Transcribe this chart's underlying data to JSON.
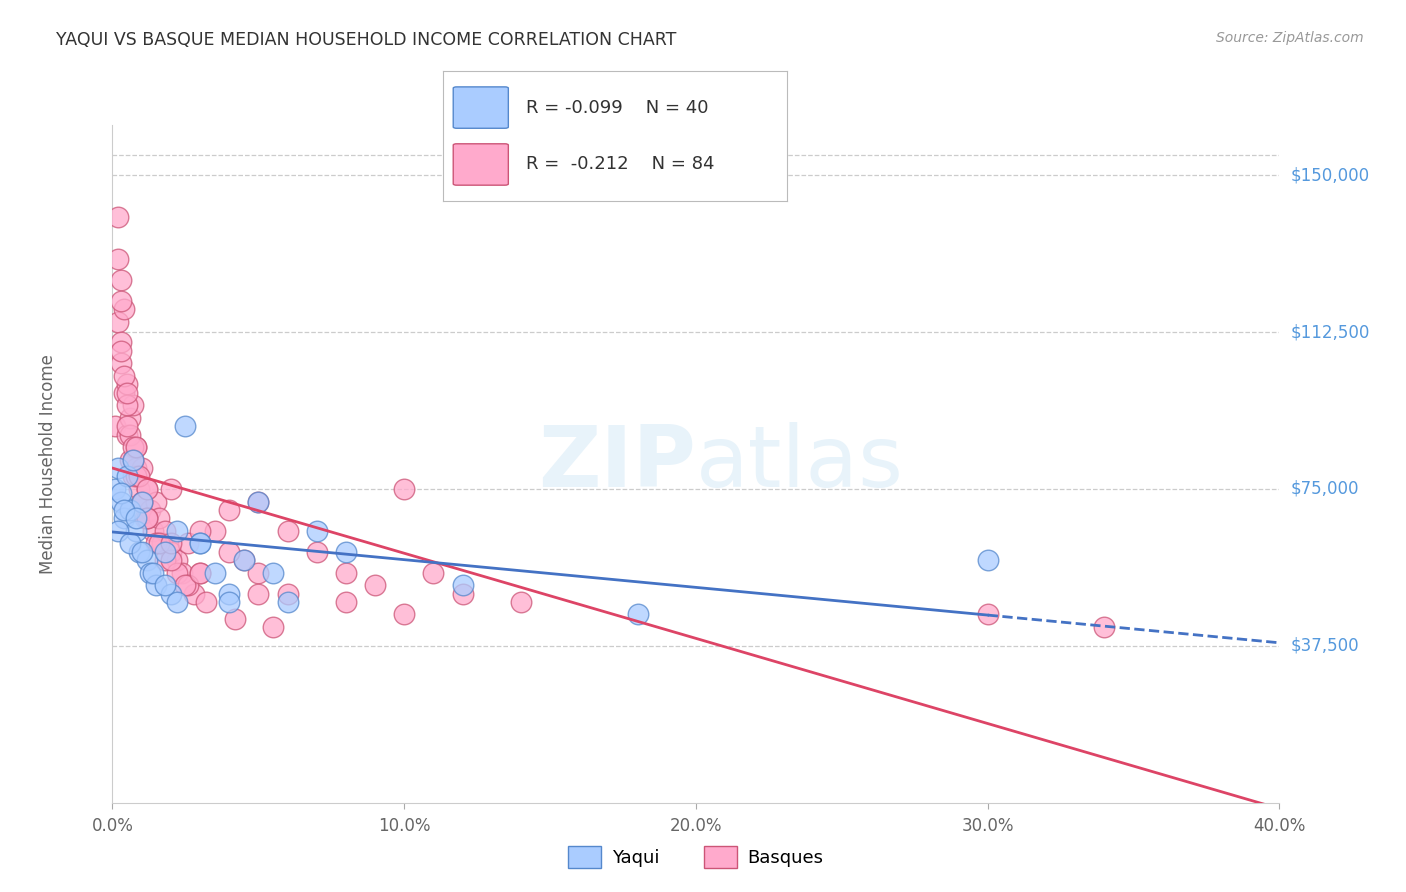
{
  "title": "YAQUI VS BASQUE MEDIAN HOUSEHOLD INCOME CORRELATION CHART",
  "source": "Source: ZipAtlas.com",
  "ylabel_label": "Median Household Income",
  "xmin": 0.0,
  "xmax": 0.4,
  "ymin": 0,
  "ymax": 162000,
  "ytick_vals": [
    37500,
    75000,
    112500,
    150000
  ],
  "ytick_labels": [
    "$37,500",
    "$75,000",
    "$112,500",
    "$150,000"
  ],
  "xticks": [
    0.0,
    0.1,
    0.2,
    0.3,
    0.4
  ],
  "xtick_labels": [
    "0.0%",
    "10.0%",
    "20.0%",
    "30.0%",
    "40.0%"
  ],
  "yaqui_color": "#aaccff",
  "yaqui_edge": "#5588cc",
  "basque_color": "#ffaacc",
  "basque_edge": "#cc5577",
  "trend_yaqui_color": "#4472c4",
  "trend_basque_color": "#dd4466",
  "legend_r_yaqui": "R = -0.099",
  "legend_n_yaqui": "N = 40",
  "legend_r_basque": "R =  -0.212",
  "legend_n_basque": "N = 84",
  "watermark": "ZIPatlas",
  "background_color": "#ffffff",
  "grid_color": "#cccccc",
  "title_color": "#333333",
  "axis_label_color": "#666666",
  "ytick_color": "#5599dd",
  "yaqui_x": [
    0.001,
    0.002,
    0.003,
    0.004,
    0.005,
    0.006,
    0.007,
    0.008,
    0.009,
    0.01,
    0.012,
    0.013,
    0.015,
    0.018,
    0.02,
    0.022,
    0.025,
    0.03,
    0.035,
    0.04,
    0.045,
    0.05,
    0.06,
    0.07,
    0.002,
    0.003,
    0.004,
    0.006,
    0.008,
    0.01,
    0.014,
    0.018,
    0.022,
    0.03,
    0.04,
    0.055,
    0.08,
    0.12,
    0.18,
    0.3
  ],
  "yaqui_y": [
    75000,
    80000,
    72000,
    68000,
    78000,
    70000,
    82000,
    65000,
    60000,
    72000,
    58000,
    55000,
    52000,
    60000,
    50000,
    48000,
    90000,
    62000,
    55000,
    50000,
    58000,
    72000,
    48000,
    65000,
    65000,
    74000,
    70000,
    62000,
    68000,
    60000,
    55000,
    52000,
    65000,
    62000,
    48000,
    55000,
    60000,
    52000,
    45000,
    58000
  ],
  "basque_x": [
    0.001,
    0.002,
    0.002,
    0.003,
    0.003,
    0.004,
    0.004,
    0.005,
    0.005,
    0.006,
    0.006,
    0.007,
    0.007,
    0.008,
    0.008,
    0.009,
    0.01,
    0.01,
    0.011,
    0.012,
    0.013,
    0.014,
    0.015,
    0.016,
    0.017,
    0.018,
    0.02,
    0.022,
    0.024,
    0.026,
    0.028,
    0.03,
    0.035,
    0.04,
    0.045,
    0.05,
    0.06,
    0.07,
    0.08,
    0.09,
    0.1,
    0.11,
    0.12,
    0.14,
    0.002,
    0.003,
    0.004,
    0.005,
    0.006,
    0.007,
    0.008,
    0.01,
    0.012,
    0.015,
    0.018,
    0.022,
    0.026,
    0.03,
    0.04,
    0.05,
    0.06,
    0.08,
    0.1,
    0.003,
    0.005,
    0.007,
    0.009,
    0.012,
    0.016,
    0.02,
    0.025,
    0.032,
    0.042,
    0.055,
    0.003,
    0.005,
    0.008,
    0.012,
    0.02,
    0.03,
    0.05,
    0.3,
    0.34,
    0.02
  ],
  "basque_y": [
    90000,
    140000,
    115000,
    125000,
    105000,
    118000,
    98000,
    100000,
    88000,
    92000,
    82000,
    95000,
    78000,
    80000,
    85000,
    75000,
    72000,
    80000,
    68000,
    75000,
    70000,
    65000,
    72000,
    68000,
    62000,
    65000,
    60000,
    58000,
    55000,
    62000,
    50000,
    55000,
    65000,
    70000,
    58000,
    72000,
    65000,
    60000,
    55000,
    52000,
    75000,
    55000,
    50000,
    48000,
    130000,
    110000,
    102000,
    95000,
    88000,
    85000,
    78000,
    72000,
    68000,
    62000,
    58000,
    55000,
    52000,
    65000,
    60000,
    55000,
    50000,
    48000,
    45000,
    108000,
    90000,
    82000,
    78000,
    68000,
    62000,
    58000,
    52000,
    48000,
    44000,
    42000,
    120000,
    98000,
    85000,
    75000,
    62000,
    55000,
    50000,
    45000,
    42000,
    75000
  ]
}
